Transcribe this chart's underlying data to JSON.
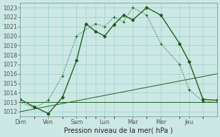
{
  "xlabel": "Pression niveau de la mer( hPa )",
  "background_color": "#cce8e4",
  "grid_color": "#99cccc",
  "line_color": "#1a5c1a",
  "xlim": [
    0,
    12
  ],
  "ylim": [
    1011.5,
    1023.5
  ],
  "yticks": [
    1012,
    1013,
    1014,
    1015,
    1016,
    1017,
    1018,
    1019,
    1020,
    1021,
    1022,
    1023
  ],
  "xtick_positions": [
    0,
    1.71,
    3.43,
    5.14,
    6.86,
    8.57,
    10.29
  ],
  "xtick_labels": [
    "Dim",
    "Ven",
    "Sam",
    "Lun",
    "Mar",
    "Mer",
    "Jeu"
  ],
  "line1_x": [
    0,
    0.86,
    1.71,
    2.57,
    3.43,
    4.0,
    4.57,
    5.14,
    5.71,
    6.29,
    6.86,
    7.71,
    8.57,
    9.71,
    10.29,
    11.14,
    12.0
  ],
  "line1_y": [
    1013.3,
    1012.5,
    1011.8,
    1013.5,
    1017.4,
    1021.3,
    1020.5,
    1020.0,
    1021.2,
    1022.2,
    1021.7,
    1023.0,
    1022.2,
    1019.2,
    1017.3,
    1013.3,
    1013.2
  ],
  "line2_x": [
    0,
    0.86,
    1.71,
    2.57,
    3.43,
    4.57,
    5.14,
    5.71,
    6.29,
    6.86,
    7.71,
    8.57,
    9.71,
    10.29,
    11.14,
    12.0
  ],
  "line2_y": [
    1013.0,
    1012.4,
    1013.2,
    1015.8,
    1020.0,
    1021.3,
    1021.0,
    1022.0,
    1021.5,
    1023.0,
    1022.2,
    1019.2,
    1017.0,
    1014.3,
    1013.1,
    1013.0
  ],
  "line3_x": [
    0,
    12.0
  ],
  "line3_y": [
    1013.0,
    1013.0
  ],
  "line4_x": [
    0,
    12.0
  ],
  "line4_y": [
    1012.0,
    1016.0
  ]
}
